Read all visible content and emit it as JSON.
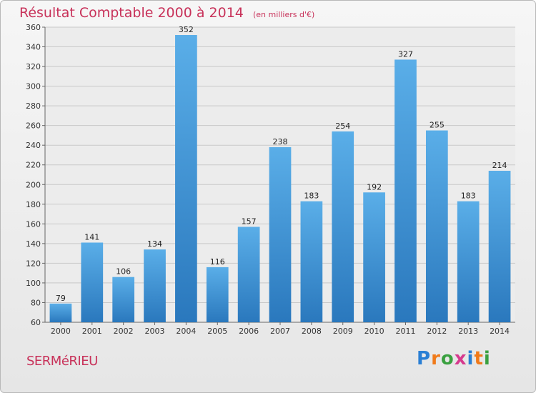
{
  "chart_data": {
    "type": "bar",
    "title": "Résultat Comptable 2000 à 2014",
    "subtitle": "(en milliers d'€)",
    "categories": [
      "2000",
      "2001",
      "2002",
      "2003",
      "2004",
      "2005",
      "2006",
      "2007",
      "2008",
      "2009",
      "2010",
      "2011",
      "2012",
      "2013",
      "2014"
    ],
    "values": [
      79,
      141,
      106,
      134,
      352,
      116,
      157,
      238,
      183,
      254,
      192,
      327,
      255,
      183,
      214
    ],
    "ylim": [
      60,
      360
    ],
    "ytick_step": 20,
    "grid": true,
    "bar_color_top": "#5aaee8",
    "bar_color_bottom": "#2a78bd"
  },
  "footer": {
    "commune": "SERMéRIEU",
    "brand_letters": [
      "P",
      "r",
      "o",
      "x",
      "i",
      "t",
      "i"
    ],
    "brand_colors": [
      "#2a7fd4",
      "#f07a1a",
      "#3aa040",
      "#d63a8e",
      "#2a7fd4",
      "#f07a1a",
      "#3aa040"
    ]
  }
}
